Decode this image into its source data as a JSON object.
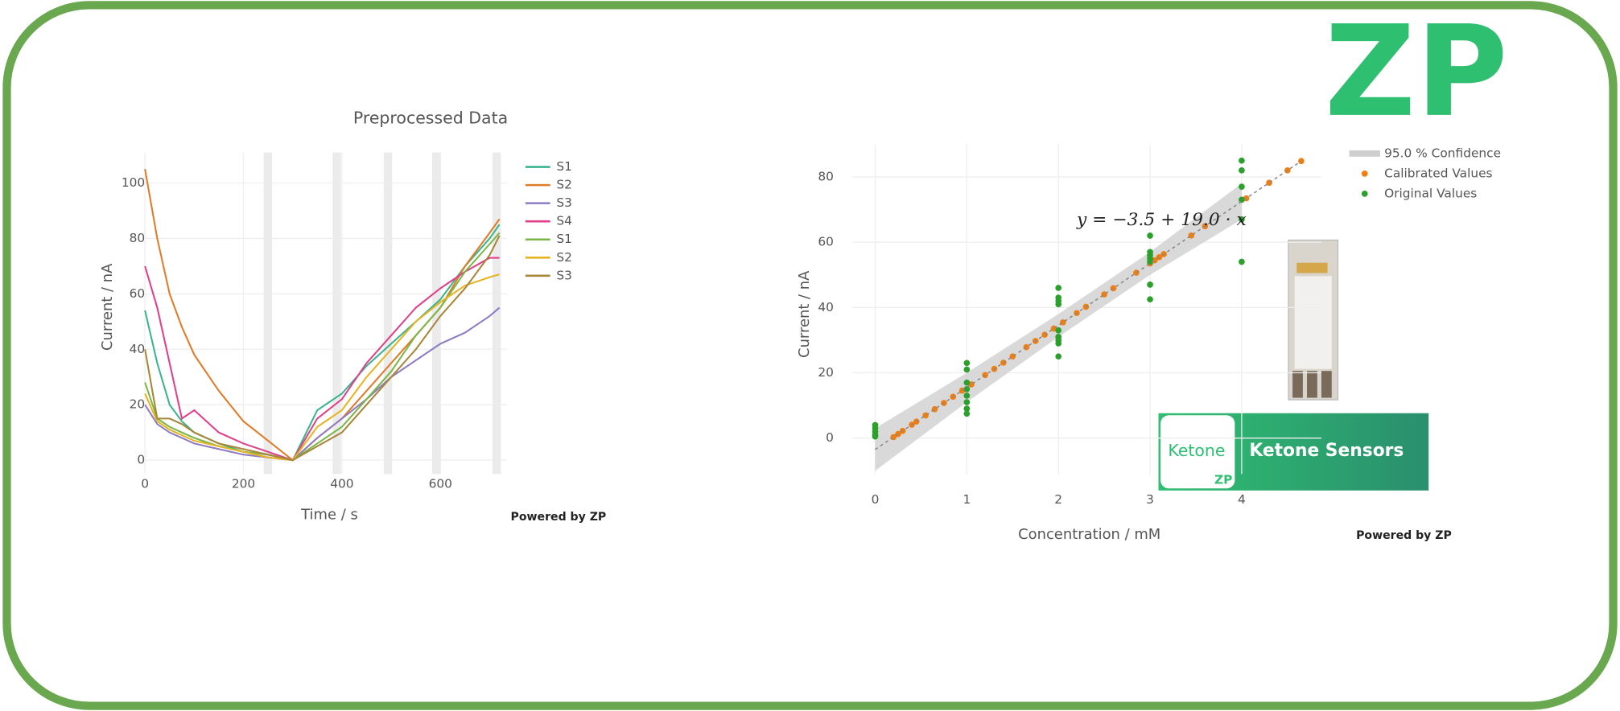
{
  "logo": "ZP",
  "badge": {
    "left": "Ketone",
    "right": "Ketone Sensors"
  },
  "chart_data": [
    {
      "type": "line",
      "title": "Preprocessed Data",
      "xlabel": "Time / s",
      "ylabel": "Current / nA",
      "annotation": "Powered by ZP",
      "xlim": [
        0,
        735
      ],
      "xticks": [
        0,
        200,
        400,
        600
      ],
      "ylim": [
        -5,
        111
      ],
      "yticks": [
        0,
        20,
        40,
        60,
        80,
        100
      ],
      "grid": true,
      "bands": [
        [
          241,
          258
        ],
        [
          381,
          398
        ],
        [
          485,
          502
        ],
        [
          583,
          600
        ],
        [
          706,
          723
        ]
      ],
      "x": [
        0,
        25,
        50,
        75,
        100,
        150,
        200,
        250,
        300,
        350,
        400,
        450,
        500,
        550,
        600,
        650,
        700,
        720
      ],
      "series": [
        {
          "name": "S1",
          "color": "#3cb38f",
          "values": [
            54,
            35,
            20,
            14,
            10,
            6,
            3,
            2,
            0,
            18,
            24,
            34,
            42,
            50,
            58,
            70,
            80,
            85
          ]
        },
        {
          "name": "S2",
          "color": "#e07b28",
          "values": [
            105,
            80,
            60,
            48,
            38,
            25,
            14,
            7,
            0,
            8,
            15,
            25,
            35,
            45,
            55,
            70,
            82,
            87
          ]
        },
        {
          "name": "S3",
          "color": "#8e7cc3",
          "values": [
            20,
            13,
            10,
            8,
            6,
            4,
            2,
            1,
            0,
            8,
            15,
            22,
            30,
            36,
            42,
            46,
            52,
            55
          ]
        },
        {
          "name": "S4",
          "color": "#e0408a",
          "values": [
            70,
            55,
            35,
            15,
            18,
            10,
            6,
            3,
            0,
            15,
            22,
            35,
            45,
            55,
            62,
            68,
            73,
            73
          ]
        },
        {
          "name": "S1",
          "color": "#7ab648",
          "values": [
            28,
            15,
            12,
            10,
            8,
            5,
            3,
            2,
            0,
            6,
            12,
            22,
            32,
            45,
            55,
            68,
            78,
            82
          ]
        },
        {
          "name": "S2",
          "color": "#e6b422",
          "values": [
            24,
            14,
            11,
            9,
            7,
            5,
            3,
            1,
            0,
            12,
            18,
            30,
            40,
            50,
            57,
            63,
            66,
            67
          ]
        },
        {
          "name": "S3",
          "color": "#a8863a",
          "values": [
            40,
            15,
            15,
            13,
            10,
            6,
            4,
            2,
            0,
            5,
            10,
            20,
            30,
            40,
            52,
            62,
            74,
            81
          ]
        }
      ]
    },
    {
      "type": "scatter",
      "xlabel": "Concentration / mM",
      "ylabel": "Current / nA",
      "annotation": "Powered by ZP",
      "equation": "y = −3.5 + 19.0 · x",
      "xlim": [
        -0.25,
        4.87
      ],
      "xticks": [
        0,
        1,
        2,
        3,
        4
      ],
      "ylim": [
        -11,
        90
      ],
      "yticks": [
        0,
        20,
        40,
        60,
        80
      ],
      "grid": true,
      "trend_line": {
        "x": [
          0,
          4.65
        ],
        "values": [
          -3.5,
          84.85
        ],
        "color": "#888888"
      },
      "series": [
        {
          "name": "95.0 % Confidence",
          "color": "#cfcfcf",
          "x": [
            0,
            1,
            2,
            3,
            4
          ],
          "lower": [
            -10,
            11,
            31,
            50,
            67
          ],
          "upper": [
            3,
            20,
            38,
            57,
            78
          ]
        },
        {
          "name": "Calibrated Values",
          "color": "#f07f12",
          "x": [
            0.2,
            0.25,
            0.3,
            0.4,
            0.45,
            0.55,
            0.65,
            0.75,
            0.85,
            0.95,
            1.05,
            1.2,
            1.3,
            1.4,
            1.5,
            1.65,
            1.75,
            1.85,
            1.95,
            2.05,
            2.2,
            2.3,
            2.5,
            2.6,
            2.85,
            3.0,
            3.05,
            3.1,
            3.15,
            3.45,
            3.6,
            4.05,
            4.3,
            4.5,
            4.65
          ],
          "values": [
            0.3,
            1.25,
            2.2,
            4.1,
            5.05,
            6.95,
            8.85,
            10.75,
            12.65,
            14.55,
            16.45,
            19.3,
            21.2,
            23.1,
            25,
            27.85,
            29.75,
            31.65,
            33.55,
            35.45,
            38.3,
            40.2,
            44,
            45.9,
            50.65,
            53.5,
            54.45,
            55.4,
            56.35,
            62.05,
            64.9,
            73.45,
            78.2,
            82,
            84.85
          ]
        },
        {
          "name": "Original Values",
          "color": "#2ca02c",
          "x": [
            0,
            0,
            0,
            0,
            0,
            1,
            1,
            1,
            1,
            1,
            1,
            1,
            1,
            2,
            2,
            2,
            2,
            2,
            2,
            2,
            2,
            2,
            3,
            3,
            3,
            3,
            3,
            3,
            3,
            4,
            4,
            4,
            4,
            4,
            4
          ],
          "values": [
            4,
            3,
            2,
            1,
            0.5,
            23,
            21,
            17,
            15,
            13,
            11,
            9,
            7.5,
            46,
            43,
            42,
            41,
            33,
            31,
            30,
            29,
            25,
            62,
            57,
            56,
            55,
            54,
            47,
            42.5,
            85,
            82,
            77,
            73,
            67,
            54
          ]
        }
      ]
    }
  ]
}
